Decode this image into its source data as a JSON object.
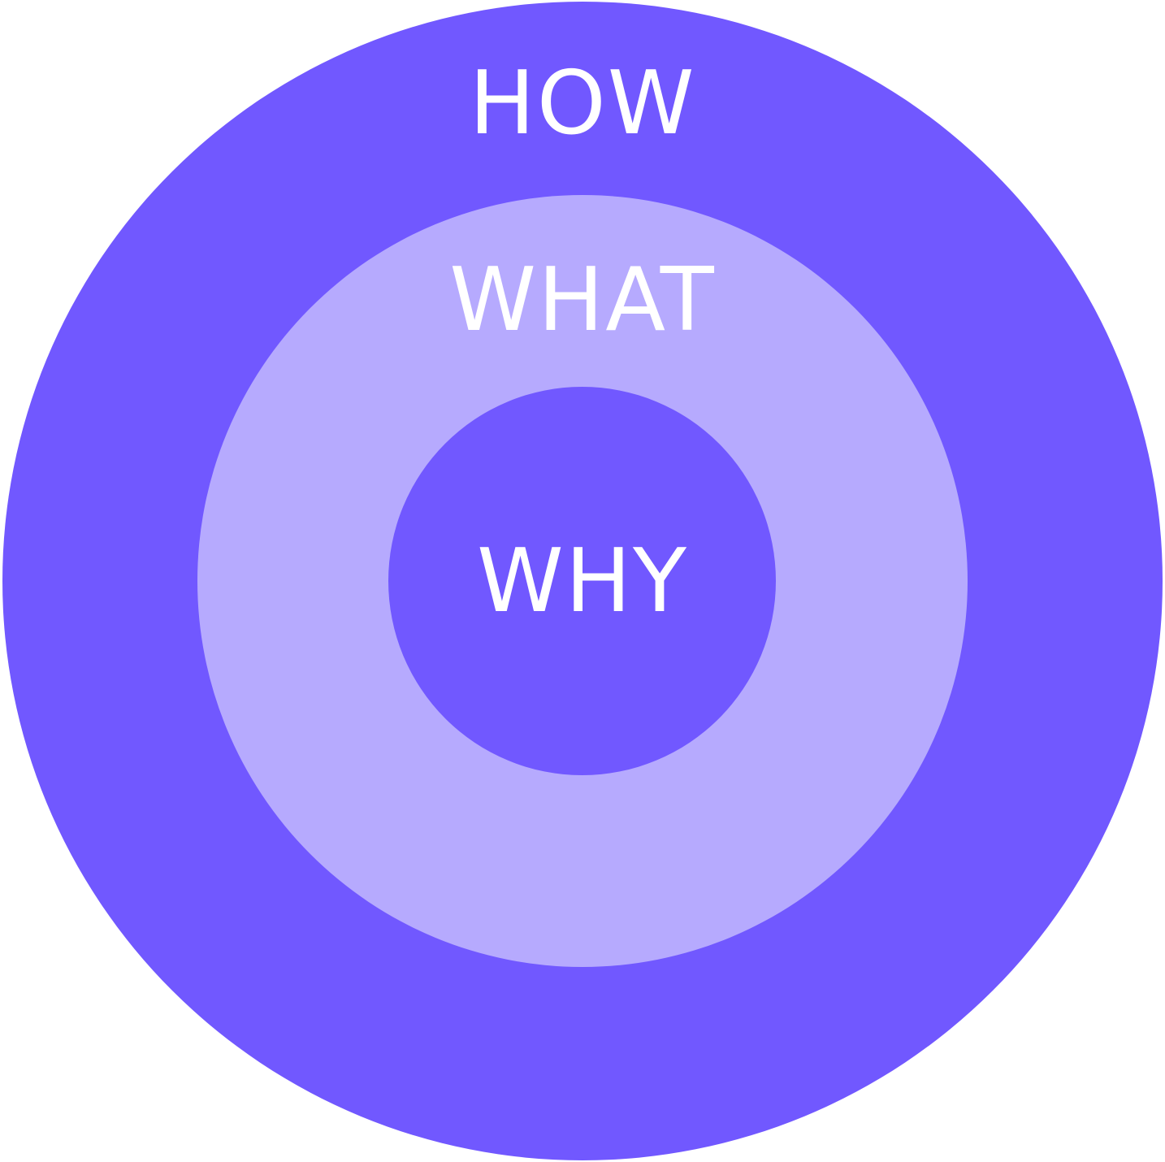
{
  "diagram": {
    "rings": [
      {
        "label": "HOW",
        "color": "#7158ff"
      },
      {
        "label": "WHAT",
        "color": "#b6aafe"
      },
      {
        "label": "WHY",
        "color": "#7158ff"
      }
    ],
    "text_color": "#ffffff",
    "background": "#ffffff"
  }
}
